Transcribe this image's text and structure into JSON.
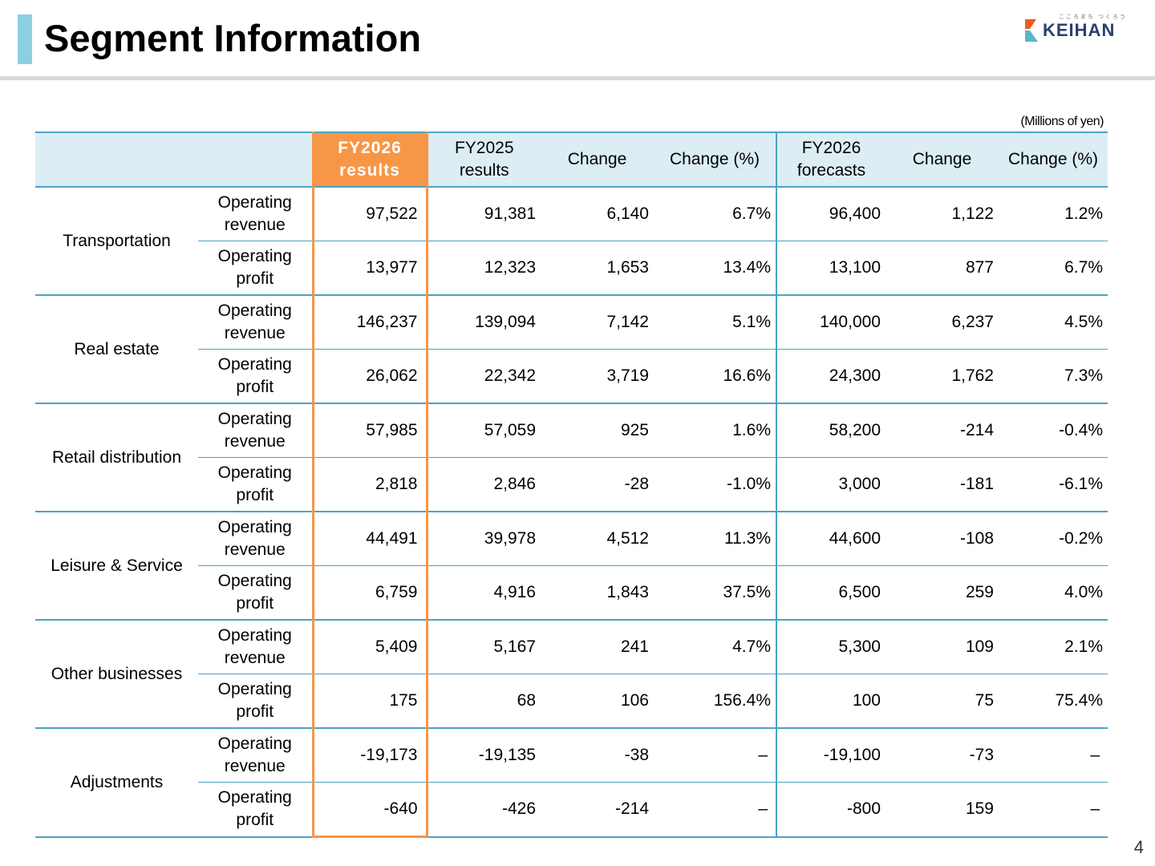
{
  "page": {
    "title": "Segment Information",
    "unit": "(Millions of yen)",
    "page_number": "4"
  },
  "logo": {
    "text": "KEIHAN",
    "tagline": "こころまち つくろう",
    "colors": {
      "orange": "#f15a24",
      "teal": "#5bb5c9",
      "navy": "#2c3e6e"
    }
  },
  "colors": {
    "accent_bar": "#8ccfe0",
    "highlight": "#f79646",
    "header_bg": "#dcedf4",
    "rule": "#4ba3c3"
  },
  "table": {
    "columns": [
      {
        "line1": "FY2026",
        "line2": "results"
      },
      {
        "line1": "FY2025",
        "line2": "results"
      },
      {
        "line1": "Change",
        "line2": ""
      },
      {
        "line1": "Change (%)",
        "line2": ""
      },
      {
        "line1": "FY2026",
        "line2": "forecasts"
      },
      {
        "line1": "Change",
        "line2": ""
      },
      {
        "line1": "Change (%)",
        "line2": ""
      }
    ],
    "segments": [
      {
        "name": "Transportation",
        "rows": [
          {
            "item_line1": "Operating",
            "item_line2": "revenue",
            "values": [
              "97,522",
              "91,381",
              "6,140",
              "6.7%",
              "96,400",
              "1,122",
              "1.2%"
            ]
          },
          {
            "item_line1": "Operating",
            "item_line2": "profit",
            "values": [
              "13,977",
              "12,323",
              "1,653",
              "13.4%",
              "13,100",
              "877",
              "6.7%"
            ]
          }
        ]
      },
      {
        "name": "Real estate",
        "rows": [
          {
            "item_line1": "Operating",
            "item_line2": "revenue",
            "values": [
              "146,237",
              "139,094",
              "7,142",
              "5.1%",
              "140,000",
              "6,237",
              "4.5%"
            ]
          },
          {
            "item_line1": "Operating",
            "item_line2": "profit",
            "values": [
              "26,062",
              "22,342",
              "3,719",
              "16.6%",
              "24,300",
              "1,762",
              "7.3%"
            ]
          }
        ]
      },
      {
        "name": "Retail distribution",
        "rows": [
          {
            "item_line1": "Operating",
            "item_line2": "revenue",
            "values": [
              "57,985",
              "57,059",
              "925",
              "1.6%",
              "58,200",
              "-214",
              "-0.4%"
            ]
          },
          {
            "item_line1": "Operating",
            "item_line2": "profit",
            "values": [
              "2,818",
              "2,846",
              "-28",
              "-1.0%",
              "3,000",
              "-181",
              "-6.1%"
            ]
          }
        ]
      },
      {
        "name": "Leisure & Service",
        "rows": [
          {
            "item_line1": "Operating",
            "item_line2": "revenue",
            "values": [
              "44,491",
              "39,978",
              "4,512",
              "11.3%",
              "44,600",
              "-108",
              "-0.2%"
            ]
          },
          {
            "item_line1": "Operating",
            "item_line2": "profit",
            "values": [
              "6,759",
              "4,916",
              "1,843",
              "37.5%",
              "6,500",
              "259",
              "4.0%"
            ]
          }
        ]
      },
      {
        "name": "Other businesses",
        "rows": [
          {
            "item_line1": "Operating",
            "item_line2": "revenue",
            "values": [
              "5,409",
              "5,167",
              "241",
              "4.7%",
              "5,300",
              "109",
              "2.1%"
            ]
          },
          {
            "item_line1": "Operating",
            "item_line2": "profit",
            "values": [
              "175",
              "68",
              "106",
              "156.4%",
              "100",
              "75",
              "75.4%"
            ]
          }
        ]
      },
      {
        "name": "Adjustments",
        "rows": [
          {
            "item_line1": "Operating",
            "item_line2": "revenue",
            "values": [
              "-19,173",
              "-19,135",
              "-38",
              "–",
              "-19,100",
              "-73",
              "–"
            ]
          },
          {
            "item_line1": "Operating",
            "item_line2": "profit",
            "values": [
              "-640",
              "-426",
              "-214",
              "–",
              "-800",
              "159",
              "–"
            ]
          }
        ]
      }
    ]
  }
}
